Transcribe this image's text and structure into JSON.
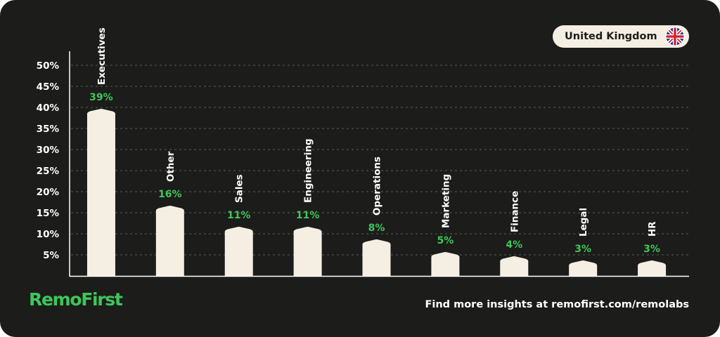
{
  "badge": {
    "country": "United Kingdom",
    "flag_icon": "uk-flag-icon"
  },
  "brand": {
    "logo_text": "RemoFirst"
  },
  "footer": {
    "text": "Find more insights at remofirst.com/remolabs"
  },
  "colors": {
    "background": "#1c1c1a",
    "bar": "#f5efe3",
    "value_label": "#3ec65a",
    "text": "#ffffff"
  },
  "chart_data": {
    "type": "bar",
    "categories": [
      "Executives",
      "Other",
      "Sales",
      "Engineering",
      "Operations",
      "Marketing",
      "Finance",
      "Legal",
      "HR"
    ],
    "values": [
      39,
      16,
      11,
      11,
      8,
      5,
      4,
      3,
      3
    ],
    "value_labels": [
      "39%",
      "16%",
      "11%",
      "11%",
      "8%",
      "5%",
      "4%",
      "3%",
      "3%"
    ],
    "y_ticks": [
      5,
      10,
      15,
      20,
      25,
      30,
      35,
      40,
      45,
      50
    ],
    "y_tick_labels": [
      "5%",
      "10%",
      "15%",
      "20%",
      "25%",
      "30%",
      "35%",
      "40%",
      "45%",
      "50%"
    ],
    "ylim": [
      0,
      52
    ],
    "grid": true,
    "title": "",
    "xlabel": "",
    "ylabel": ""
  }
}
